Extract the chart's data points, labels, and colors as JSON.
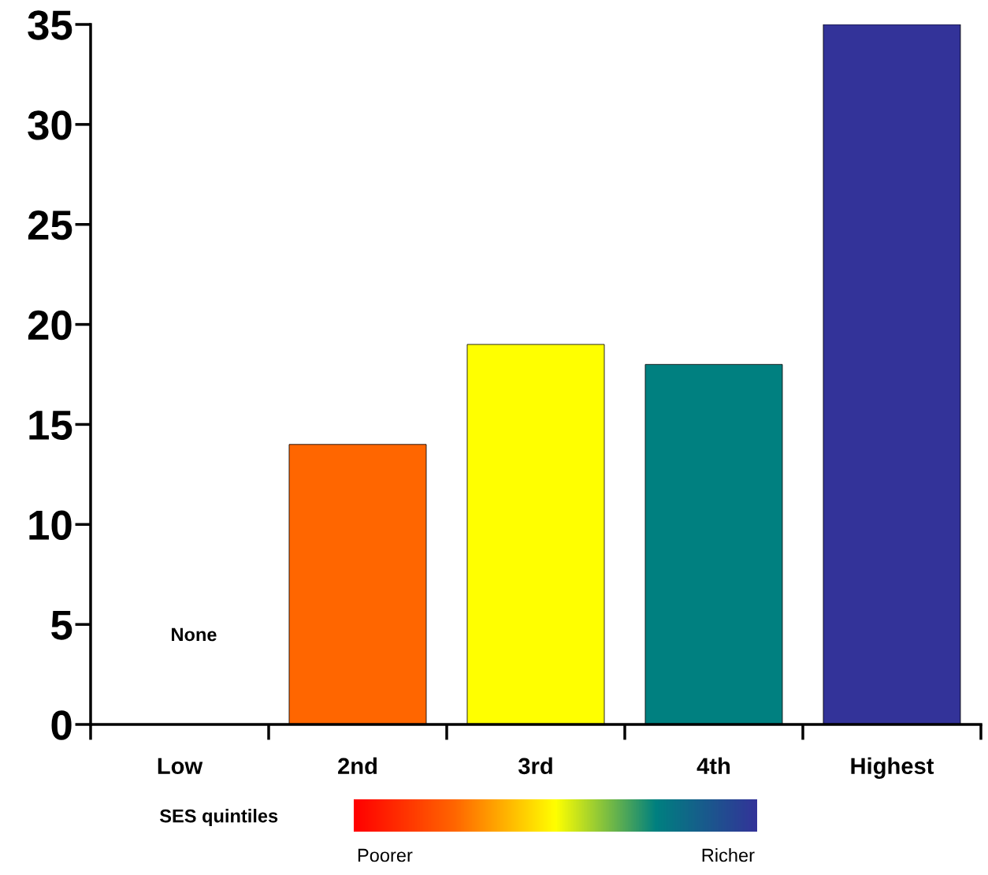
{
  "chart_data": {
    "type": "bar",
    "xlabel": "SES quintiles",
    "categories": [
      "Low",
      "2nd",
      "3rd",
      "4th",
      "Highest"
    ],
    "values": [
      0,
      14,
      19,
      18,
      35
    ],
    "colors": [
      null,
      "#ff6600",
      "#ffff00",
      "#008080",
      "#333399"
    ],
    "ylim": [
      0,
      35
    ],
    "yticks": [
      0,
      5,
      10,
      15,
      20,
      25,
      30,
      35
    ],
    "grid": false,
    "annotations": [
      "None",
      "Poorer",
      "Richer"
    ]
  }
}
